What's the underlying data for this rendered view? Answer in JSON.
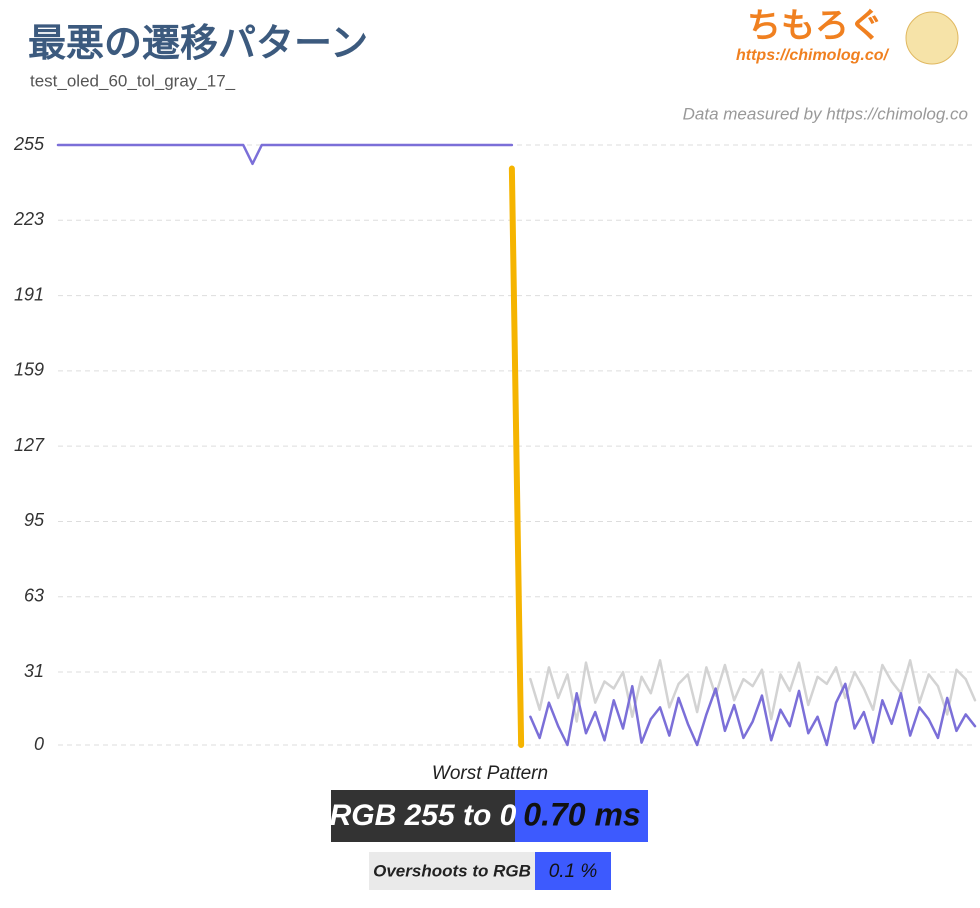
{
  "chart_data": {
    "type": "line",
    "title": "最悪の遷移パターン",
    "subtitle": "test_oled_60_tol_gray_17_",
    "credit": "Data measured by https://chimolog.co",
    "logo": "ちもろぐ",
    "logo_url": "https://chimolog.co/",
    "summary": {
      "heading": "Worst Pattern",
      "transition": "RGB 255 to 0",
      "time": "0.70 ms",
      "overshoot_label": "Overshoots to RGB",
      "overshoot": "0.1 %"
    },
    "ylim": [
      0,
      255
    ],
    "yticks": [
      0,
      31,
      63,
      95,
      127,
      159,
      191,
      223,
      255
    ],
    "grid": true,
    "series": [
      {
        "color": "#d3d3d3",
        "values": [
          null,
          null,
          null,
          null,
          null,
          null,
          null,
          null,
          null,
          null,
          null,
          null,
          null,
          null,
          null,
          null,
          null,
          null,
          null,
          null,
          null,
          null,
          null,
          null,
          null,
          null,
          null,
          null,
          null,
          null,
          null,
          null,
          null,
          null,
          null,
          null,
          null,
          null,
          null,
          null,
          null,
          null,
          null,
          null,
          null,
          null,
          null,
          null,
          null,
          null,
          null,
          28,
          15,
          33,
          20,
          30,
          10,
          35,
          18,
          27,
          24,
          31,
          12,
          29,
          22,
          36,
          16,
          26,
          30,
          14,
          33,
          21,
          34,
          19,
          28,
          25,
          32,
          11,
          30,
          23,
          35,
          17,
          29,
          26,
          33,
          20,
          31,
          24,
          15,
          34,
          27,
          22,
          36,
          18,
          30,
          25,
          13,
          32,
          28,
          19
        ]
      },
      {
        "color": "#7b6fd8",
        "values": [
          255,
          255,
          255,
          255,
          255,
          255,
          255,
          255,
          255,
          255,
          255,
          255,
          255,
          255,
          255,
          255,
          255,
          255,
          255,
          255,
          255,
          247,
          255,
          255,
          255,
          255,
          255,
          255,
          255,
          255,
          255,
          255,
          255,
          255,
          255,
          255,
          255,
          255,
          255,
          255,
          255,
          255,
          255,
          255,
          255,
          255,
          255,
          255,
          255,
          255,
          null,
          12,
          3,
          18,
          8,
          0,
          22,
          5,
          14,
          2,
          19,
          7,
          25,
          1,
          11,
          16,
          4,
          20,
          9,
          0,
          13,
          24,
          6,
          17,
          3,
          10,
          21,
          2,
          15,
          8,
          23,
          5,
          12,
          0,
          18,
          26,
          7,
          14,
          1,
          19,
          9,
          22,
          4,
          16,
          11,
          3,
          20,
          6,
          13,
          8
        ]
      },
      {
        "color": "#f5b400",
        "values": [
          null,
          null,
          null,
          null,
          null,
          null,
          null,
          null,
          null,
          null,
          null,
          null,
          null,
          null,
          null,
          null,
          null,
          null,
          null,
          null,
          null,
          null,
          null,
          null,
          null,
          null,
          null,
          null,
          null,
          null,
          null,
          null,
          null,
          null,
          null,
          null,
          null,
          null,
          null,
          null,
          null,
          null,
          null,
          null,
          null,
          null,
          null,
          null,
          null,
          245,
          0,
          null,
          null,
          null,
          null,
          null,
          null,
          null,
          null,
          null,
          null,
          null,
          null,
          null,
          null,
          null,
          null,
          null,
          null,
          null,
          null,
          null,
          null,
          null,
          null,
          null,
          null,
          null,
          null,
          null,
          null,
          null,
          null,
          null,
          null,
          null,
          null,
          null,
          null,
          null,
          null,
          null,
          null,
          null,
          null,
          null,
          null,
          null,
          null,
          null
        ]
      }
    ]
  }
}
